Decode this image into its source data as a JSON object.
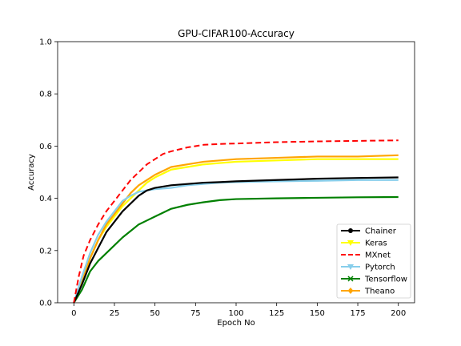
{
  "chart_data": {
    "type": "line",
    "title": "GPU-CIFAR100-Accuracy",
    "xlabel": "Epoch No",
    "ylabel": "Accuracy",
    "xlim": [
      -10,
      210
    ],
    "ylim": [
      0.0,
      1.0
    ],
    "xticks": [
      "0",
      "25",
      "50",
      "75",
      "100",
      "125",
      "150",
      "175",
      "200"
    ],
    "yticks": [
      "0.0",
      "0.2",
      "0.4",
      "0.6",
      "0.8",
      "1.0"
    ],
    "grid": false,
    "legend_position": "lower-right",
    "series": [
      {
        "name": "Chainer",
        "color": "#000000",
        "linestyle": "solid",
        "marker": "circle",
        "points": [
          [
            0,
            0.0
          ],
          [
            5,
            0.07
          ],
          [
            10,
            0.15
          ],
          [
            15,
            0.21
          ],
          [
            20,
            0.27
          ],
          [
            25,
            0.31
          ],
          [
            30,
            0.35
          ],
          [
            35,
            0.38
          ],
          [
            40,
            0.41
          ],
          [
            45,
            0.43
          ],
          [
            50,
            0.44
          ],
          [
            60,
            0.45
          ],
          [
            70,
            0.455
          ],
          [
            80,
            0.46
          ],
          [
            90,
            0.462
          ],
          [
            100,
            0.465
          ],
          [
            125,
            0.47
          ],
          [
            150,
            0.475
          ],
          [
            175,
            0.478
          ],
          [
            200,
            0.48
          ]
        ]
      },
      {
        "name": "Keras",
        "color": "#ffff00",
        "linestyle": "solid",
        "marker": "triangle-down",
        "points": [
          [
            0,
            0.0
          ],
          [
            5,
            0.08
          ],
          [
            10,
            0.17
          ],
          [
            15,
            0.24
          ],
          [
            20,
            0.29
          ],
          [
            25,
            0.33
          ],
          [
            30,
            0.37
          ],
          [
            35,
            0.4
          ],
          [
            40,
            0.43
          ],
          [
            45,
            0.46
          ],
          [
            50,
            0.48
          ],
          [
            60,
            0.51
          ],
          [
            70,
            0.52
          ],
          [
            80,
            0.53
          ],
          [
            90,
            0.535
          ],
          [
            100,
            0.54
          ],
          [
            125,
            0.545
          ],
          [
            150,
            0.55
          ],
          [
            175,
            0.55
          ],
          [
            200,
            0.55
          ]
        ]
      },
      {
        "name": "MXnet",
        "color": "#ff0000",
        "linestyle": "dashed",
        "marker": "none",
        "points": [
          [
            0,
            0.0
          ],
          [
            3,
            0.1
          ],
          [
            6,
            0.18
          ],
          [
            10,
            0.24
          ],
          [
            15,
            0.3
          ],
          [
            20,
            0.35
          ],
          [
            25,
            0.39
          ],
          [
            30,
            0.43
          ],
          [
            35,
            0.47
          ],
          [
            40,
            0.5
          ],
          [
            45,
            0.53
          ],
          [
            50,
            0.55
          ],
          [
            55,
            0.57
          ],
          [
            60,
            0.58
          ],
          [
            70,
            0.595
          ],
          [
            80,
            0.605
          ],
          [
            90,
            0.608
          ],
          [
            100,
            0.61
          ],
          [
            125,
            0.615
          ],
          [
            150,
            0.618
          ],
          [
            175,
            0.62
          ],
          [
            200,
            0.622
          ]
        ]
      },
      {
        "name": "Pytorch",
        "color": "#87ceeb",
        "linestyle": "solid",
        "marker": "triangle-down",
        "points": [
          [
            0,
            0.0
          ],
          [
            5,
            0.1
          ],
          [
            10,
            0.19
          ],
          [
            15,
            0.26
          ],
          [
            20,
            0.31
          ],
          [
            25,
            0.35
          ],
          [
            30,
            0.39
          ],
          [
            35,
            0.41
          ],
          [
            40,
            0.425
          ],
          [
            45,
            0.43
          ],
          [
            50,
            0.435
          ],
          [
            60,
            0.44
          ],
          [
            70,
            0.45
          ],
          [
            80,
            0.455
          ],
          [
            90,
            0.46
          ],
          [
            100,
            0.462
          ],
          [
            125,
            0.465
          ],
          [
            150,
            0.467
          ],
          [
            175,
            0.47
          ],
          [
            200,
            0.47
          ]
        ]
      },
      {
        "name": "Tensorflow",
        "color": "#008000",
        "linestyle": "solid",
        "marker": "x",
        "points": [
          [
            0,
            0.0
          ],
          [
            5,
            0.05
          ],
          [
            10,
            0.12
          ],
          [
            15,
            0.16
          ],
          [
            20,
            0.19
          ],
          [
            25,
            0.22
          ],
          [
            30,
            0.25
          ],
          [
            35,
            0.275
          ],
          [
            40,
            0.3
          ],
          [
            45,
            0.315
          ],
          [
            50,
            0.33
          ],
          [
            60,
            0.36
          ],
          [
            70,
            0.375
          ],
          [
            80,
            0.385
          ],
          [
            90,
            0.393
          ],
          [
            100,
            0.397
          ],
          [
            125,
            0.4
          ],
          [
            150,
            0.402
          ],
          [
            175,
            0.404
          ],
          [
            200,
            0.405
          ]
        ]
      },
      {
        "name": "Theano",
        "color": "#ffa500",
        "linestyle": "solid",
        "marker": "diamond",
        "points": [
          [
            0,
            0.0
          ],
          [
            5,
            0.08
          ],
          [
            10,
            0.17
          ],
          [
            15,
            0.24
          ],
          [
            20,
            0.3
          ],
          [
            25,
            0.34
          ],
          [
            30,
            0.38
          ],
          [
            35,
            0.42
          ],
          [
            40,
            0.45
          ],
          [
            45,
            0.47
          ],
          [
            50,
            0.49
          ],
          [
            60,
            0.52
          ],
          [
            70,
            0.53
          ],
          [
            80,
            0.54
          ],
          [
            90,
            0.545
          ],
          [
            100,
            0.55
          ],
          [
            125,
            0.555
          ],
          [
            150,
            0.56
          ],
          [
            175,
            0.56
          ],
          [
            200,
            0.565
          ]
        ]
      }
    ]
  }
}
